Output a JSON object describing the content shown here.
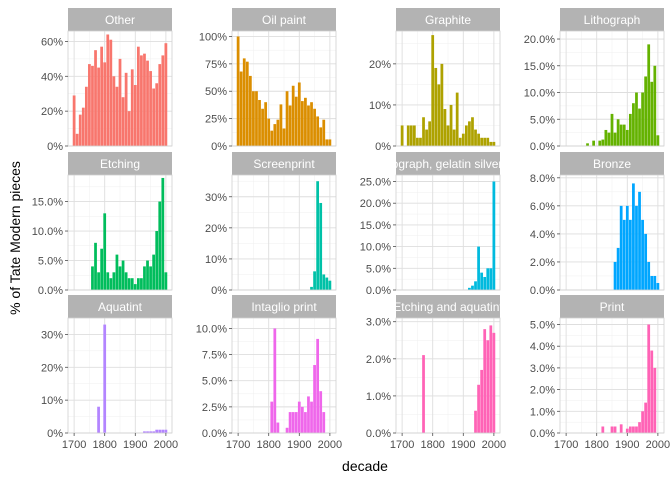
{
  "chart_data": {
    "type": "bar",
    "xlabel": "decade",
    "ylabel": "% of Tate Modern pieces",
    "x_ticks": [
      1700,
      1800,
      1900,
      2000
    ],
    "xlim": [
      1680,
      2020
    ],
    "colors": [
      "#F8766D",
      "#DB8E00",
      "#AEA200",
      "#64B200",
      "#00BD5C",
      "#00C1A7",
      "#00BADE",
      "#00A6FF",
      "#B385FF",
      "#EF67EB",
      "#FF63B6",
      "#FF63B6"
    ],
    "panels": [
      {
        "title": "Other",
        "ylim": [
          0,
          0.66
        ],
        "y_ticks": [
          0,
          0.2,
          0.4,
          0.6
        ],
        "y_tick_labels": [
          "0%",
          "20%",
          "40%",
          "60%"
        ],
        "x": [
          1700,
          1710,
          1720,
          1730,
          1740,
          1750,
          1760,
          1770,
          1780,
          1790,
          1800,
          1810,
          1820,
          1830,
          1840,
          1850,
          1860,
          1870,
          1880,
          1890,
          1900,
          1910,
          1920,
          1930,
          1940,
          1950,
          1960,
          1970,
          1980,
          1990,
          2000
        ],
        "values": [
          0.29,
          0.07,
          0.18,
          0.22,
          0.34,
          0.47,
          0.46,
          0.55,
          0.45,
          0.57,
          0.48,
          0.64,
          0.61,
          0.4,
          0.34,
          0.5,
          0.28,
          0.42,
          0.2,
          0.44,
          0.35,
          0.57,
          0.52,
          0.53,
          0.49,
          0.43,
          0.33,
          0.36,
          0.47,
          0.52,
          0.59
        ]
      },
      {
        "title": "Oil paint",
        "ylim": [
          0,
          1.05
        ],
        "y_ticks": [
          0,
          0.25,
          0.5,
          0.75,
          1
        ],
        "y_tick_labels": [
          "0%",
          "25%",
          "50%",
          "75%",
          "100%"
        ],
        "x": [
          1700,
          1710,
          1720,
          1730,
          1740,
          1750,
          1760,
          1770,
          1780,
          1790,
          1800,
          1810,
          1820,
          1830,
          1840,
          1850,
          1860,
          1870,
          1880,
          1890,
          1900,
          1910,
          1920,
          1930,
          1940,
          1950,
          1960,
          1970,
          1980,
          1990,
          2000
        ],
        "values": [
          1.0,
          0.68,
          0.8,
          0.77,
          0.64,
          0.5,
          0.5,
          0.42,
          0.34,
          0.4,
          0.25,
          0.14,
          0.2,
          0.24,
          0.38,
          0.16,
          0.5,
          0.37,
          0.55,
          0.45,
          0.58,
          0.41,
          0.44,
          0.37,
          0.4,
          0.34,
          0.27,
          0.17,
          0.24,
          0.06,
          0.06
        ]
      },
      {
        "title": "Graphite",
        "ylim": [
          0,
          0.28
        ],
        "y_ticks": [
          0,
          0.1,
          0.2
        ],
        "y_tick_labels": [
          "0%",
          "10%",
          "20%"
        ],
        "x": [
          1700,
          1710,
          1720,
          1730,
          1740,
          1750,
          1760,
          1770,
          1780,
          1790,
          1800,
          1810,
          1820,
          1830,
          1840,
          1850,
          1860,
          1870,
          1880,
          1890,
          1900,
          1910,
          1920,
          1930,
          1940,
          1950,
          1960,
          1970,
          1980,
          1990,
          2000
        ],
        "values": [
          0.05,
          0,
          0.05,
          0.05,
          0.05,
          0.02,
          0.02,
          0.07,
          0.04,
          0.06,
          0.27,
          0.19,
          0.15,
          0.2,
          0.09,
          0.05,
          0.1,
          0.04,
          0.13,
          0.02,
          0.03,
          0.05,
          0.06,
          0.07,
          0.04,
          0.03,
          0.02,
          0.02,
          0.02,
          0.01,
          0.01
        ]
      },
      {
        "title": "Lithograph",
        "ylim": [
          0,
          0.215
        ],
        "y_ticks": [
          0,
          0.05,
          0.1,
          0.15,
          0.2
        ],
        "y_tick_labels": [
          "0.0%",
          "5.0%",
          "10.0%",
          "15.0%",
          "20.0%"
        ],
        "x": [
          1770,
          1790,
          1810,
          1820,
          1830,
          1840,
          1850,
          1860,
          1870,
          1880,
          1890,
          1900,
          1910,
          1920,
          1930,
          1940,
          1950,
          1960,
          1970,
          1980,
          1990,
          2000
        ],
        "values": [
          0.005,
          0.01,
          0.01,
          0.012,
          0.03,
          0.025,
          0.06,
          0.025,
          0.05,
          0.04,
          0.04,
          0.03,
          0.06,
          0.08,
          0.1,
          0.07,
          0.1,
          0.13,
          0.19,
          0.12,
          0.15,
          0.02
        ]
      },
      {
        "title": "Etching",
        "ylim": [
          0,
          0.195
        ],
        "y_ticks": [
          0,
          0.05,
          0.1,
          0.15
        ],
        "y_tick_labels": [
          "0.0%",
          "5.0%",
          "10.0%",
          "15.0%"
        ],
        "x": [
          1760,
          1770,
          1780,
          1790,
          1800,
          1810,
          1820,
          1830,
          1840,
          1850,
          1860,
          1870,
          1880,
          1890,
          1900,
          1910,
          1920,
          1930,
          1940,
          1950,
          1960,
          1970,
          1980,
          1990,
          2000
        ],
        "values": [
          0.04,
          0.08,
          0.03,
          0.07,
          0.13,
          0.03,
          0.02,
          0.03,
          0.06,
          0.04,
          0.05,
          0.03,
          0.02,
          0.02,
          0.01,
          0.02,
          0.02,
          0.04,
          0.05,
          0.04,
          0.06,
          0.1,
          0.15,
          0.19,
          0.03
        ]
      },
      {
        "title": "Screenprint",
        "ylim": [
          0,
          0.37
        ],
        "y_ticks": [
          0,
          0.1,
          0.2,
          0.3
        ],
        "y_tick_labels": [
          "0%",
          "10%",
          "20%",
          "30%"
        ],
        "x": [
          1940,
          1950,
          1960,
          1970,
          1980,
          1990,
          2000
        ],
        "values": [
          0.01,
          0.06,
          0.35,
          0.28,
          0.05,
          0.04,
          0.03
        ]
      },
      {
        "title": "Photograph, gelatin silver print",
        "ylim": [
          0,
          0.265
        ],
        "y_ticks": [
          0,
          0.05,
          0.1,
          0.15,
          0.2,
          0.25
        ],
        "y_tick_labels": [
          "0.0%",
          "5.0%",
          "10.0%",
          "15.0%",
          "20.0%",
          "25.0%"
        ],
        "x": [
          1920,
          1930,
          1940,
          1950,
          1960,
          1970,
          1980,
          1990,
          2000
        ],
        "values": [
          0.005,
          0.01,
          0.02,
          0.1,
          0.04,
          0.03,
          0.05,
          0.05,
          0.25
        ]
      },
      {
        "title": "Bronze",
        "ylim": [
          0,
          0.082
        ],
        "y_ticks": [
          0,
          0.02,
          0.04,
          0.06,
          0.08
        ],
        "y_tick_labels": [
          "0.0%",
          "2.0%",
          "4.0%",
          "6.0%",
          "8.0%"
        ],
        "x": [
          1860,
          1870,
          1880,
          1890,
          1900,
          1910,
          1920,
          1930,
          1940,
          1950,
          1960,
          1970,
          1980,
          1990,
          2000
        ],
        "values": [
          0.02,
          0.03,
          0.06,
          0.05,
          0.06,
          0.05,
          0.076,
          0.06,
          0.07,
          0.05,
          0.04,
          0.02,
          0.01,
          0.01,
          0.005
        ]
      },
      {
        "title": "Aquatint",
        "ylim": [
          0,
          0.35
        ],
        "y_ticks": [
          0,
          0.1,
          0.2,
          0.3
        ],
        "y_tick_labels": [
          "0%",
          "10%",
          "20%",
          "30%"
        ],
        "x": [
          1780,
          1800,
          1930,
          1940,
          1950,
          1960,
          1970,
          1980,
          1990,
          2000
        ],
        "values": [
          0.08,
          0.33,
          0.005,
          0.005,
          0.005,
          0.005,
          0.01,
          0.01,
          0.01,
          0.01
        ]
      },
      {
        "title": "Intaglio print",
        "ylim": [
          0,
          0.11
        ],
        "y_ticks": [
          0,
          0.025,
          0.05,
          0.075,
          0.1
        ],
        "y_tick_labels": [
          "0.0%",
          "2.5%",
          "5.0%",
          "7.5%",
          "10.0%"
        ],
        "x": [
          1810,
          1820,
          1830,
          1860,
          1870,
          1880,
          1890,
          1900,
          1910,
          1920,
          1930,
          1940,
          1950,
          1960,
          1970,
          1980
        ],
        "values": [
          0.03,
          0.1,
          0.01,
          0.005,
          0.02,
          0.02,
          0.02,
          0.03,
          0.025,
          0.02,
          0.035,
          0.03,
          0.065,
          0.09,
          0.04,
          0.02
        ]
      },
      {
        "title": "Etching and aquatint",
        "ylim": [
          0,
          0.031
        ],
        "y_ticks": [
          0,
          0.01,
          0.02,
          0.03
        ],
        "y_tick_labels": [
          "0.0%",
          "1.0%",
          "2.0%",
          "3.0%"
        ],
        "x": [
          1770,
          1940,
          1950,
          1960,
          1970,
          1980,
          1990,
          2000
        ],
        "values": [
          0.021,
          0.006,
          0.013,
          0.017,
          0.028,
          0.025,
          0.029,
          0.027
        ]
      },
      {
        "title": "Print",
        "ylim": [
          0,
          0.053
        ],
        "y_ticks": [
          0,
          0.01,
          0.02,
          0.03,
          0.04,
          0.05
        ],
        "y_tick_labels": [
          "0.0%",
          "1.0%",
          "2.0%",
          "3.0%",
          "4.0%",
          "5.0%"
        ],
        "x": [
          1820,
          1850,
          1860,
          1880,
          1900,
          1910,
          1920,
          1930,
          1940,
          1950,
          1960,
          1970,
          1980,
          1990
        ],
        "values": [
          0.003,
          0.003,
          0.003,
          0.004,
          0.002,
          0.003,
          0.003,
          0.003,
          0.005,
          0.01,
          0.014,
          0.05,
          0.038,
          0.03
        ]
      }
    ]
  }
}
